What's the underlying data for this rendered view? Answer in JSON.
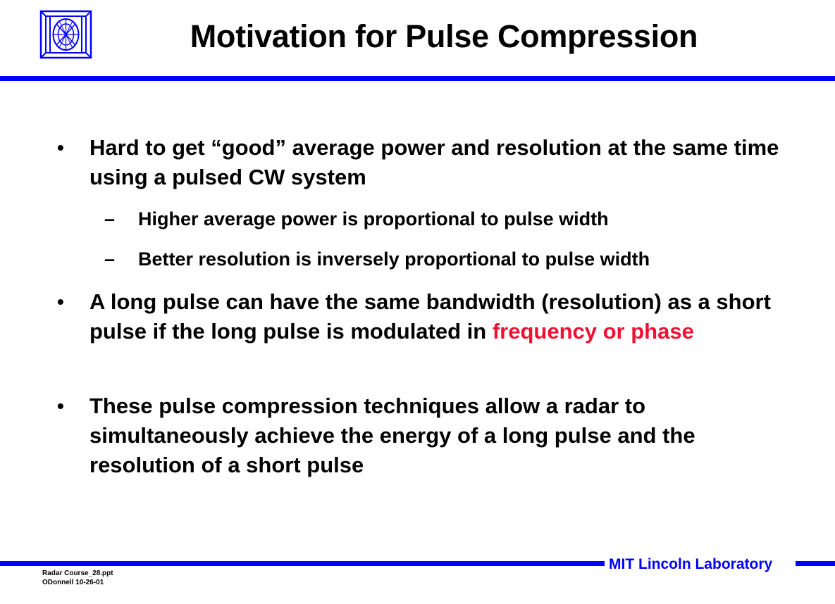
{
  "slide": {
    "title": "Motivation for Pulse Compression"
  },
  "bullets": [
    {
      "mark": "•",
      "text": "Hard to get “good” average power and resolution at the same time using a pulsed CW system",
      "sub": [
        {
          "mark": "–",
          "text": "Higher average power is proportional to pulse width"
        },
        {
          "mark": "–",
          "text": "Better resolution is inversely proportional to pulse width"
        }
      ]
    },
    {
      "mark": "•",
      "text": "A long pulse can have the same bandwidth (resolution) as a short pulse if the long pulse is modulated in ",
      "highlight": "frequency or phase"
    },
    {
      "mark": "•",
      "text": "These pulse compression techniques allow a radar to simultaneously achieve the energy of a long pulse and the resolution of a short pulse"
    }
  ],
  "footer": {
    "lab_name": "MIT Lincoln Laboratory",
    "file_name": "Radar Course_28.ppt",
    "author_date": "ODonnell 10-26-01"
  },
  "colors": {
    "accent_blue": "#0000ff",
    "highlight_red": "#ee1133",
    "text": "#000000",
    "background": "#ffffff"
  },
  "icons": {
    "logo": "mit-lincoln-laboratory-logo"
  }
}
